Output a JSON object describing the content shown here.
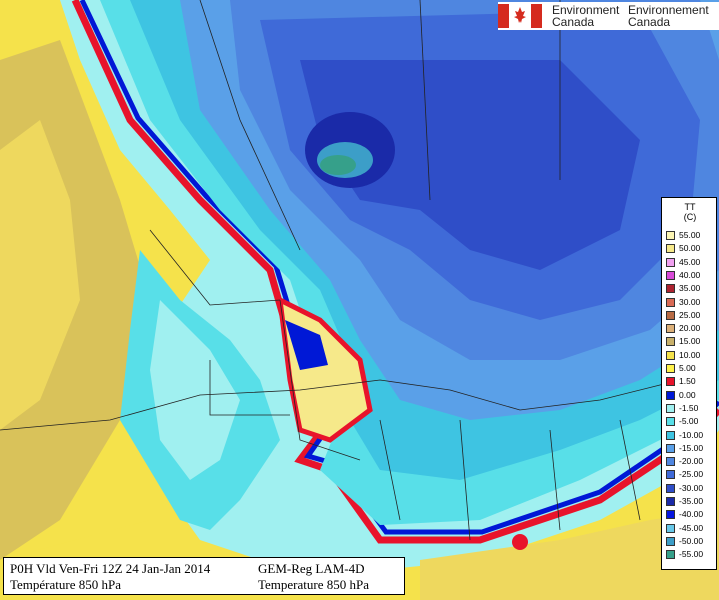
{
  "logo": {
    "line1_left": "Environment",
    "line2_left": "Canada",
    "line1_right": "Environnement",
    "line2_right": "Canada",
    "flag_colors": {
      "red": "#d52b1e",
      "white": "#ffffff"
    }
  },
  "legend": {
    "title_code": "TT",
    "title_unit": "(C)",
    "entries": [
      {
        "label": "55.00",
        "color": "#fdf6b4"
      },
      {
        "label": "50.00",
        "color": "#f6e98a"
      },
      {
        "label": "45.00",
        "color": "#f0a0f0"
      },
      {
        "label": "40.00",
        "color": "#d84ad8"
      },
      {
        "label": "35.00",
        "color": "#ad2330"
      },
      {
        "label": "30.00",
        "color": "#d96a55"
      },
      {
        "label": "25.00",
        "color": "#b86b45"
      },
      {
        "label": "20.00",
        "color": "#dcb079"
      },
      {
        "label": "15.00",
        "color": "#c8b06a"
      },
      {
        "label": "10.00",
        "color": "#f5e24b"
      },
      {
        "label": "5.00",
        "color": "#fff24a"
      },
      {
        "label": "1.50",
        "color": "#e8132b"
      },
      {
        "label": "0.00",
        "color": "#0018d6"
      },
      {
        "label": "-1.50",
        "color": "#a0f0f0"
      },
      {
        "label": "-5.00",
        "color": "#58dfe8"
      },
      {
        "label": "-10.00",
        "color": "#3ec4e2"
      },
      {
        "label": "-15.00",
        "color": "#5aa0e8"
      },
      {
        "label": "-20.00",
        "color": "#4f86e0"
      },
      {
        "label": "-25.00",
        "color": "#3f6ad8"
      },
      {
        "label": "-30.00",
        "color": "#2f4ec8"
      },
      {
        "label": "-35.00",
        "color": "#1a2aa8"
      },
      {
        "label": "-40.00",
        "color": "#0616e0"
      },
      {
        "label": "-45.00",
        "color": "#68c8e8"
      },
      {
        "label": "-50.00",
        "color": "#3c9ec8"
      },
      {
        "label": "-55.00",
        "color": "#36a08a"
      }
    ]
  },
  "info": {
    "left_line1": "P0H Vld Ven-Fri 12Z 24 Jan-Jan 2014",
    "left_line2": "Température 850 hPa",
    "right_line1": "GEM-Reg LAM-4D",
    "right_line2": "Temperature 850 hPa"
  }
}
